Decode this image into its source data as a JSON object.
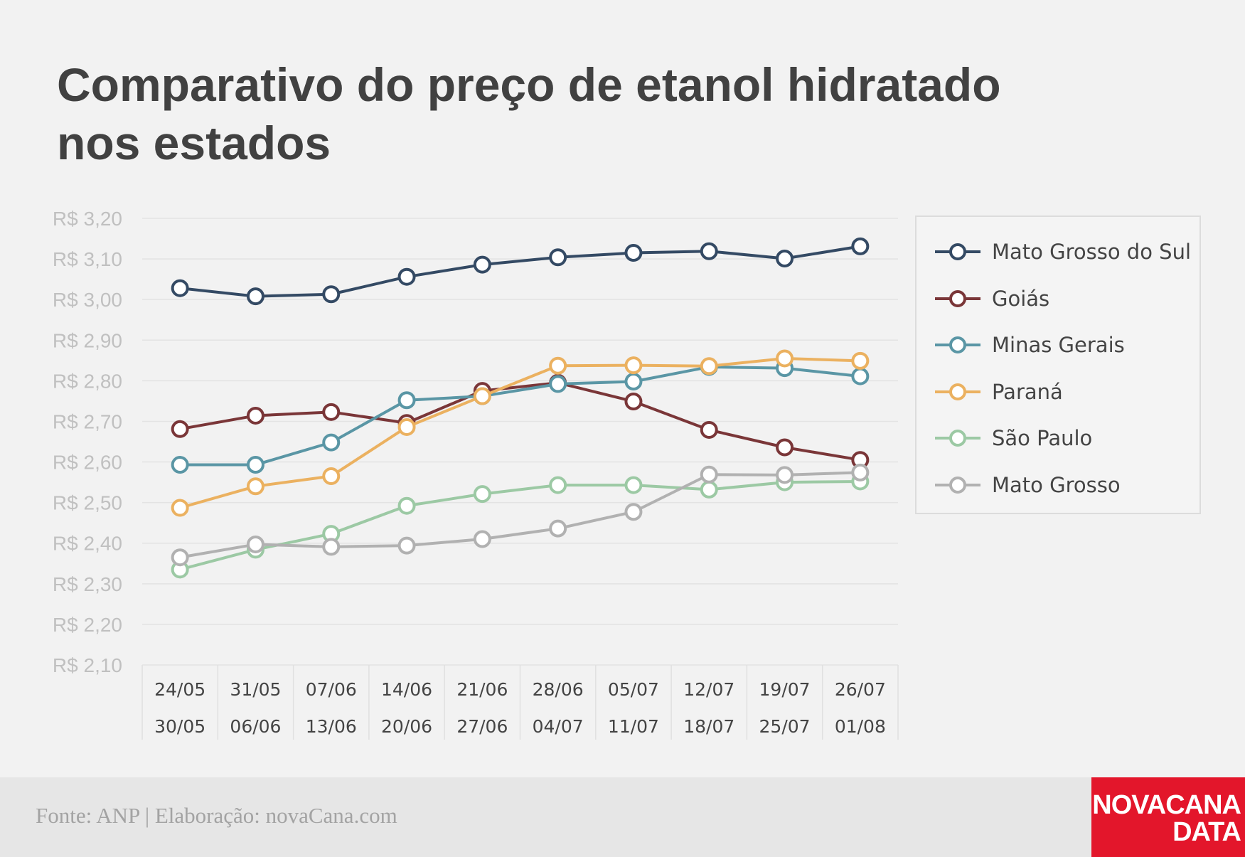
{
  "chart_data": {
    "type": "line",
    "title": "Comparativo do preço de etanol hidratado\nnos estados",
    "x": [
      [
        "24/05",
        "30/05"
      ],
      [
        "31/05",
        "06/06"
      ],
      [
        "07/06",
        "13/06"
      ],
      [
        "14/06",
        "20/06"
      ],
      [
        "21/06",
        "27/06"
      ],
      [
        "28/06",
        "04/07"
      ],
      [
        "05/07",
        "11/07"
      ],
      [
        "12/07",
        "18/07"
      ],
      [
        "19/07",
        "25/07"
      ],
      [
        "26/07",
        "01/08"
      ]
    ],
    "xlabel": "",
    "ylabel": "",
    "ylim": [
      2.1,
      3.2
    ],
    "y_ticks": [
      {
        "value": 3.2,
        "label": "R$ 3,20"
      },
      {
        "value": 3.1,
        "label": "R$ 3,10"
      },
      {
        "value": 3.0,
        "label": "R$ 3,00"
      },
      {
        "value": 2.9,
        "label": "R$ 2,90"
      },
      {
        "value": 2.8,
        "label": "R$ 2,80"
      },
      {
        "value": 2.7,
        "label": "R$ 2,70"
      },
      {
        "value": 2.6,
        "label": "R$ 2,60"
      },
      {
        "value": 2.5,
        "label": "R$ 2,50"
      },
      {
        "value": 2.4,
        "label": "R$ 2,40"
      },
      {
        "value": 2.3,
        "label": "R$ 2,30"
      },
      {
        "value": 2.2,
        "label": "R$ 2,20"
      },
      {
        "value": 2.1,
        "label": "R$ 2,10"
      }
    ],
    "grid": true,
    "legend_position": "right",
    "series": [
      {
        "name": "Mato Grosso do Sul",
        "color": "#344a64",
        "values": [
          3.028,
          3.008,
          3.013,
          3.056,
          3.086,
          3.104,
          3.115,
          3.119,
          3.101,
          3.131
        ]
      },
      {
        "name": "Goiás",
        "color": "#7a3638",
        "values": [
          2.681,
          2.714,
          2.723,
          2.696,
          2.775,
          2.795,
          2.749,
          2.679,
          2.636,
          2.605
        ]
      },
      {
        "name": "Minas Gerais",
        "color": "#5a96a5",
        "values": [
          2.593,
          2.593,
          2.648,
          2.752,
          2.762,
          2.792,
          2.798,
          2.834,
          2.831,
          2.811
        ]
      },
      {
        "name": "Paraná",
        "color": "#ebb160",
        "values": [
          2.487,
          2.54,
          2.565,
          2.686,
          2.762,
          2.837,
          2.838,
          2.836,
          2.855,
          2.849
        ]
      },
      {
        "name": "São Paulo",
        "color": "#9cc9a4",
        "values": [
          2.335,
          2.384,
          2.423,
          2.492,
          2.521,
          2.543,
          2.543,
          2.532,
          2.55,
          2.552
        ]
      },
      {
        "name": "Mato Grosso",
        "color": "#b1b1b1",
        "values": [
          2.365,
          2.397,
          2.391,
          2.394,
          2.41,
          2.436,
          2.477,
          2.569,
          2.568,
          2.574
        ]
      }
    ]
  },
  "footer": {
    "source": "Fonte: ANP | Elaboração: novaCana.com",
    "logo_line1": "NOVACANA",
    "logo_line2": "DATA"
  },
  "colors": {
    "background": "#f2f2f2",
    "footer_background": "#e6e6e6",
    "logo_background": "#e3162b"
  }
}
